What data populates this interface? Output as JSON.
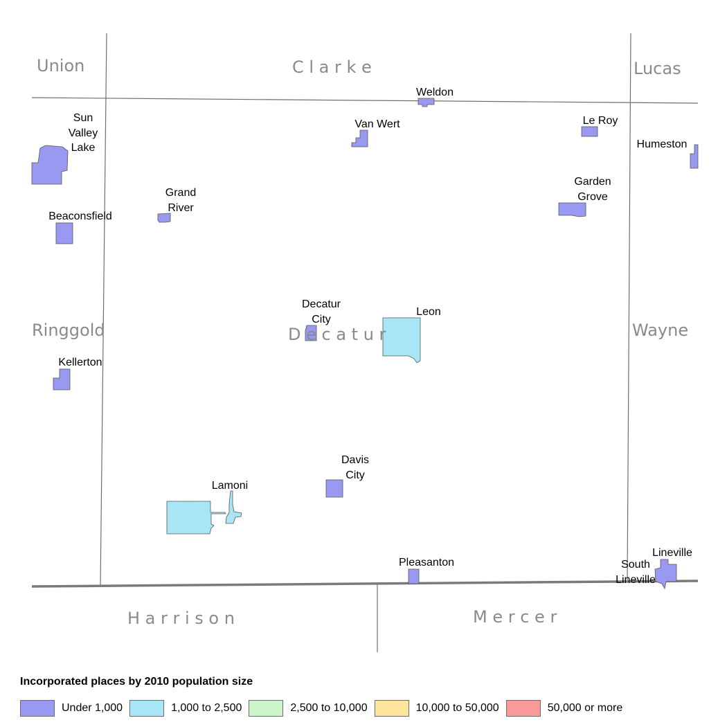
{
  "colors": {
    "under_1000": "#9999f2",
    "1000_2500": "#a8e6f5",
    "2500_10000": "#ccf5cc",
    "10000_50000": "#fde59b",
    "50000_plus": "#f99a9a",
    "boundary": "#6e6e6e",
    "state_line": "#7a7a7a",
    "county_label": "#8a8a8a"
  },
  "counties": {
    "union": "Union",
    "clarke": "C l a r k e",
    "lucas": "Lucas",
    "ringgold": "Ringgold",
    "decatur": "D e c a t u r",
    "wayne": "Wayne",
    "harrison": "H a r r i s o n",
    "mercer": "M e r c e r"
  },
  "places": {
    "weldon": "Weldon",
    "sun_valley_lake": [
      "Sun",
      "Valley",
      "Lake"
    ],
    "van_wert": "Van Wert",
    "le_roy": "Le Roy",
    "humeston": "Humeston",
    "grand_river": [
      "Grand",
      "River"
    ],
    "garden_grove": [
      "Garden",
      "Grove"
    ],
    "beaconsfield": "Beaconsfield",
    "decatur_city": [
      "Decatur",
      "City"
    ],
    "leon": "Leon",
    "kellerton": "Kellerton",
    "davis_city": [
      "Davis",
      "City"
    ],
    "lamoni": "Lamoni",
    "pleasanton": "Pleasanton",
    "lineville": "Lineville",
    "south_lineville": [
      "South",
      "Lineville"
    ]
  },
  "legend": {
    "title": "Incorporated places by 2010 population size",
    "items": [
      {
        "label": "Under 1,000",
        "color": "#9999f2"
      },
      {
        "label": "1,000 to 2,500",
        "color": "#a8e6f5"
      },
      {
        "label": "2,500 to 10,000",
        "color": "#ccf5cc"
      },
      {
        "label": "10,000 to 50,000",
        "color": "#fde59b"
      },
      {
        "label": "50,000 or more",
        "color": "#f99a9a"
      }
    ]
  }
}
